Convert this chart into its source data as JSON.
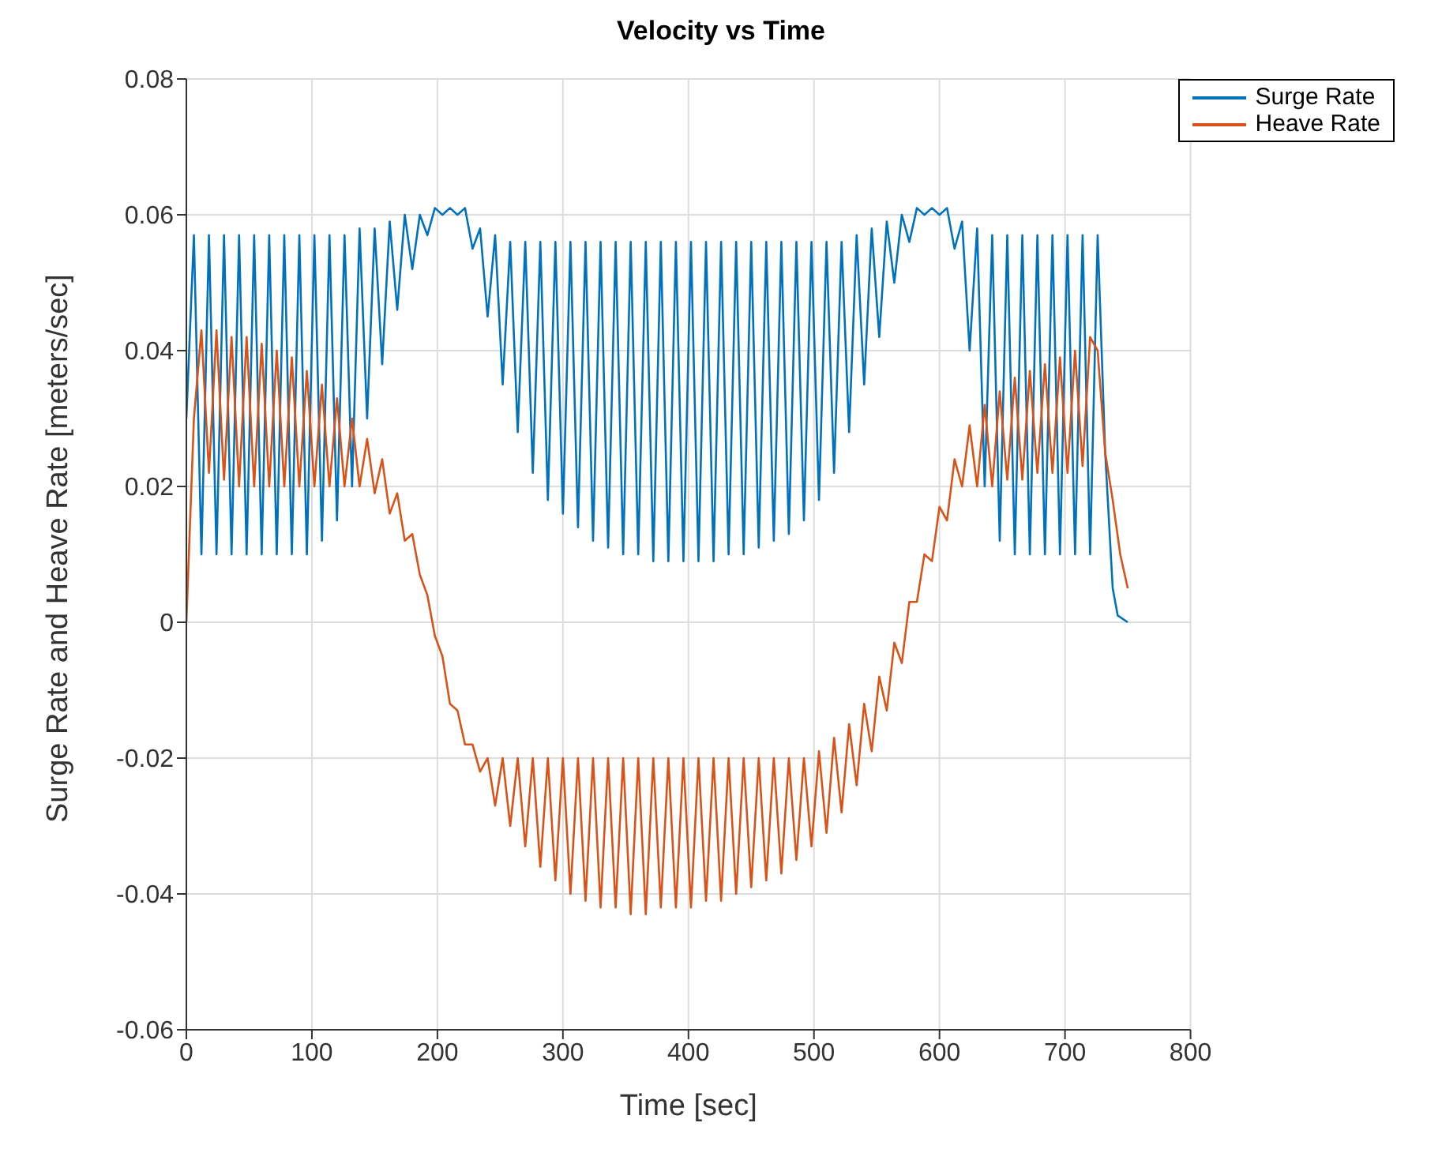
{
  "chart_data": {
    "type": "line",
    "title": "Velocity vs Time",
    "xlabel": "Time [sec]",
    "ylabel": "Surge Rate and Heave Rate [meters/sec]",
    "xlim": [
      0,
      800
    ],
    "xticks": [
      0,
      100,
      200,
      300,
      400,
      500,
      600,
      700,
      800
    ],
    "ylim": [
      -0.06,
      0.08
    ],
    "yticks": [
      -0.06,
      -0.04,
      -0.02,
      0,
      0.02,
      0.04,
      0.06,
      0.08
    ],
    "grid": true,
    "legend": "top right",
    "marker": "none",
    "line_style": "solid",
    "series": [
      {
        "name": "Surge Rate",
        "color": "#0072bd",
        "x": [
          0,
          6,
          12,
          18,
          24,
          30,
          36,
          42,
          48,
          54,
          60,
          66,
          72,
          78,
          84,
          90,
          96,
          102,
          108,
          114,
          120,
          126,
          132,
          138,
          144,
          150,
          156,
          162,
          168,
          174,
          180,
          186,
          192,
          198,
          204,
          210,
          216,
          222,
          228,
          234,
          240,
          246,
          252,
          258,
          264,
          270,
          276,
          282,
          288,
          294,
          300,
          306,
          312,
          318,
          324,
          330,
          336,
          342,
          348,
          354,
          360,
          366,
          372,
          378,
          384,
          390,
          396,
          402,
          408,
          414,
          420,
          426,
          432,
          438,
          444,
          450,
          456,
          462,
          468,
          474,
          480,
          486,
          492,
          498,
          504,
          510,
          516,
          522,
          528,
          534,
          540,
          546,
          552,
          558,
          564,
          570,
          576,
          582,
          588,
          594,
          600,
          606,
          612,
          618,
          624,
          630,
          636,
          642,
          648,
          654,
          660,
          666,
          672,
          678,
          684,
          690,
          696,
          702,
          708,
          714,
          720,
          726,
          732,
          738,
          742,
          750
        ],
        "values": [
          0.03,
          0.057,
          0.01,
          0.057,
          0.01,
          0.057,
          0.01,
          0.057,
          0.01,
          0.057,
          0.01,
          0.057,
          0.01,
          0.057,
          0.01,
          0.057,
          0.01,
          0.057,
          0.012,
          0.057,
          0.015,
          0.057,
          0.02,
          0.058,
          0.03,
          0.058,
          0.038,
          0.059,
          0.046,
          0.06,
          0.052,
          0.06,
          0.057,
          0.061,
          0.06,
          0.061,
          0.06,
          0.061,
          0.055,
          0.058,
          0.045,
          0.057,
          0.035,
          0.056,
          0.028,
          0.056,
          0.022,
          0.056,
          0.018,
          0.056,
          0.016,
          0.056,
          0.014,
          0.056,
          0.012,
          0.056,
          0.011,
          0.056,
          0.01,
          0.056,
          0.01,
          0.056,
          0.009,
          0.056,
          0.009,
          0.056,
          0.009,
          0.056,
          0.009,
          0.056,
          0.009,
          0.056,
          0.01,
          0.056,
          0.01,
          0.056,
          0.011,
          0.056,
          0.012,
          0.056,
          0.013,
          0.056,
          0.015,
          0.056,
          0.018,
          0.056,
          0.022,
          0.056,
          0.028,
          0.057,
          0.035,
          0.058,
          0.042,
          0.059,
          0.05,
          0.06,
          0.056,
          0.061,
          0.06,
          0.061,
          0.06,
          0.061,
          0.055,
          0.059,
          0.04,
          0.058,
          0.02,
          0.057,
          0.012,
          0.057,
          0.01,
          0.057,
          0.01,
          0.057,
          0.01,
          0.057,
          0.01,
          0.057,
          0.01,
          0.057,
          0.01,
          0.057,
          0.025,
          0.005,
          0.001,
          0
        ]
      },
      {
        "name": "Heave Rate",
        "color": "#d95319",
        "x": [
          0,
          6,
          12,
          18,
          24,
          30,
          36,
          42,
          48,
          54,
          60,
          66,
          72,
          78,
          84,
          90,
          96,
          102,
          108,
          114,
          120,
          126,
          132,
          138,
          144,
          150,
          156,
          162,
          168,
          174,
          180,
          186,
          192,
          198,
          204,
          210,
          216,
          222,
          228,
          234,
          240,
          246,
          252,
          258,
          264,
          270,
          276,
          282,
          288,
          294,
          300,
          306,
          312,
          318,
          324,
          330,
          336,
          342,
          348,
          354,
          360,
          366,
          372,
          378,
          384,
          390,
          396,
          402,
          408,
          414,
          420,
          426,
          432,
          438,
          444,
          450,
          456,
          462,
          468,
          474,
          480,
          486,
          492,
          498,
          504,
          510,
          516,
          522,
          528,
          534,
          540,
          546,
          552,
          558,
          564,
          570,
          576,
          582,
          588,
          594,
          600,
          606,
          612,
          618,
          624,
          630,
          636,
          642,
          648,
          654,
          660,
          666,
          672,
          678,
          684,
          690,
          696,
          702,
          708,
          714,
          720,
          726,
          732,
          738,
          744,
          750
        ],
        "values": [
          0,
          0.03,
          0.043,
          0.022,
          0.043,
          0.021,
          0.042,
          0.02,
          0.042,
          0.02,
          0.041,
          0.02,
          0.04,
          0.02,
          0.039,
          0.02,
          0.037,
          0.02,
          0.035,
          0.02,
          0.033,
          0.02,
          0.03,
          0.02,
          0.027,
          0.019,
          0.024,
          0.016,
          0.019,
          0.012,
          0.013,
          0.007,
          0.004,
          -0.002,
          -0.005,
          -0.012,
          -0.013,
          -0.018,
          -0.018,
          -0.022,
          -0.02,
          -0.027,
          -0.02,
          -0.03,
          -0.02,
          -0.033,
          -0.02,
          -0.036,
          -0.02,
          -0.038,
          -0.02,
          -0.04,
          -0.02,
          -0.041,
          -0.02,
          -0.042,
          -0.02,
          -0.042,
          -0.02,
          -0.043,
          -0.02,
          -0.043,
          -0.02,
          -0.042,
          -0.02,
          -0.042,
          -0.02,
          -0.042,
          -0.02,
          -0.041,
          -0.02,
          -0.041,
          -0.02,
          -0.04,
          -0.02,
          -0.039,
          -0.02,
          -0.038,
          -0.02,
          -0.037,
          -0.02,
          -0.035,
          -0.02,
          -0.033,
          -0.019,
          -0.031,
          -0.017,
          -0.028,
          -0.015,
          -0.024,
          -0.012,
          -0.019,
          -0.008,
          -0.013,
          -0.003,
          -0.006,
          0.003,
          0.003,
          0.01,
          0.009,
          0.017,
          0.015,
          0.024,
          0.02,
          0.029,
          0.02,
          0.032,
          0.02,
          0.034,
          0.021,
          0.036,
          0.021,
          0.037,
          0.022,
          0.038,
          0.022,
          0.039,
          0.022,
          0.04,
          0.023,
          0.042,
          0.04,
          0.025,
          0.018,
          0.01,
          0.005
        ]
      }
    ]
  }
}
